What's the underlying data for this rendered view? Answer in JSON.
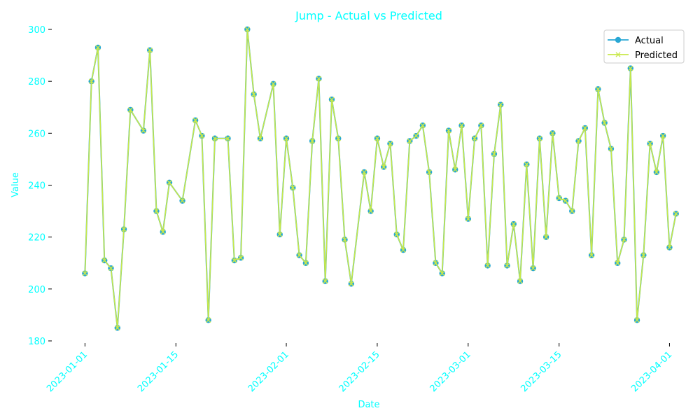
{
  "chart_data": {
    "type": "line",
    "title": "Jump - Actual vs Predicted",
    "xlabel": "Date",
    "ylabel": "Value",
    "ylim": [
      180,
      300
    ],
    "yticks": [
      180,
      200,
      220,
      240,
      260,
      280,
      300
    ],
    "xticks": [
      "2023-01-01",
      "2023-01-15",
      "2023-02-01",
      "2023-02-15",
      "2023-03-01",
      "2023-03-15",
      "2023-04-01"
    ],
    "xlim": [
      "2022-12-27",
      "2023-04-03"
    ],
    "grid": false,
    "legend_position": "top-right",
    "x": [
      "2023-01-01",
      "2023-01-02",
      "2023-01-03",
      "2023-01-04",
      "2023-01-05",
      "2023-01-06",
      "2023-01-07",
      "2023-01-08",
      "2023-01-10",
      "2023-01-11",
      "2023-01-12",
      "2023-01-13",
      "2023-01-14",
      "2023-01-16",
      "2023-01-18",
      "2023-01-19",
      "2023-01-20",
      "2023-01-21",
      "2023-01-23",
      "2023-01-24",
      "2023-01-25",
      "2023-01-26",
      "2023-01-27",
      "2023-01-28",
      "2023-01-30",
      "2023-01-31",
      "2023-02-01",
      "2023-02-02",
      "2023-02-03",
      "2023-02-04",
      "2023-02-05",
      "2023-02-06",
      "2023-02-07",
      "2023-02-08",
      "2023-02-09",
      "2023-02-10",
      "2023-02-11",
      "2023-02-13",
      "2023-02-14",
      "2023-02-15",
      "2023-02-16",
      "2023-02-17",
      "2023-02-18",
      "2023-02-19",
      "2023-02-20",
      "2023-02-21",
      "2023-02-22",
      "2023-02-23",
      "2023-02-24",
      "2023-02-25",
      "2023-02-26",
      "2023-02-27",
      "2023-02-28",
      "2023-03-01",
      "2023-03-02",
      "2023-03-03",
      "2023-03-04",
      "2023-03-05",
      "2023-03-06",
      "2023-03-07",
      "2023-03-08",
      "2023-03-09",
      "2023-03-10",
      "2023-03-11",
      "2023-03-12",
      "2023-03-13",
      "2023-03-14",
      "2023-03-15",
      "2023-03-16",
      "2023-03-17",
      "2023-03-18",
      "2023-03-19",
      "2023-03-20",
      "2023-03-21",
      "2023-03-22",
      "2023-03-23",
      "2023-03-24",
      "2023-03-25",
      "2023-03-26",
      "2023-03-27",
      "2023-03-28",
      "2023-03-29",
      "2023-03-30",
      "2023-03-31",
      "2023-04-01",
      "2023-04-02"
    ],
    "series": [
      {
        "name": "Actual",
        "color": "#29a7d4",
        "marker": "circle",
        "values": [
          206,
          280,
          293,
          211,
          208,
          185,
          223,
          269,
          261,
          292,
          230,
          222,
          241,
          234,
          265,
          259,
          188,
          258,
          258,
          211,
          212,
          300,
          275,
          258,
          279,
          221,
          258,
          239,
          213,
          210,
          257,
          281,
          203,
          273,
          258,
          219,
          202,
          245,
          230,
          258,
          247,
          256,
          221,
          215,
          257,
          259,
          263,
          245,
          210,
          206,
          261,
          246,
          263,
          227,
          258,
          263,
          209,
          252,
          271,
          209,
          225,
          203,
          248,
          208,
          258,
          220,
          260,
          235,
          234,
          230,
          257,
          262,
          213,
          277,
          264,
          254,
          210,
          219,
          285,
          188,
          213,
          256,
          245,
          259,
          216,
          229
        ]
      },
      {
        "name": "Predicted",
        "color": "#c8e84a",
        "marker": "x",
        "values": [
          206,
          280,
          293,
          211,
          208,
          185,
          223,
          269,
          261,
          292,
          230,
          222,
          241,
          234,
          265,
          259,
          188,
          258,
          258,
          211,
          212,
          300,
          275,
          258,
          279,
          221,
          258,
          239,
          213,
          210,
          257,
          281,
          203,
          273,
          258,
          219,
          202,
          245,
          230,
          258,
          247,
          256,
          221,
          215,
          257,
          259,
          263,
          245,
          210,
          206,
          261,
          246,
          263,
          227,
          258,
          263,
          209,
          252,
          271,
          209,
          225,
          203,
          248,
          208,
          258,
          220,
          260,
          235,
          234,
          230,
          257,
          262,
          213,
          277,
          264,
          254,
          210,
          219,
          285,
          188,
          213,
          256,
          245,
          259,
          216,
          229
        ]
      }
    ]
  }
}
